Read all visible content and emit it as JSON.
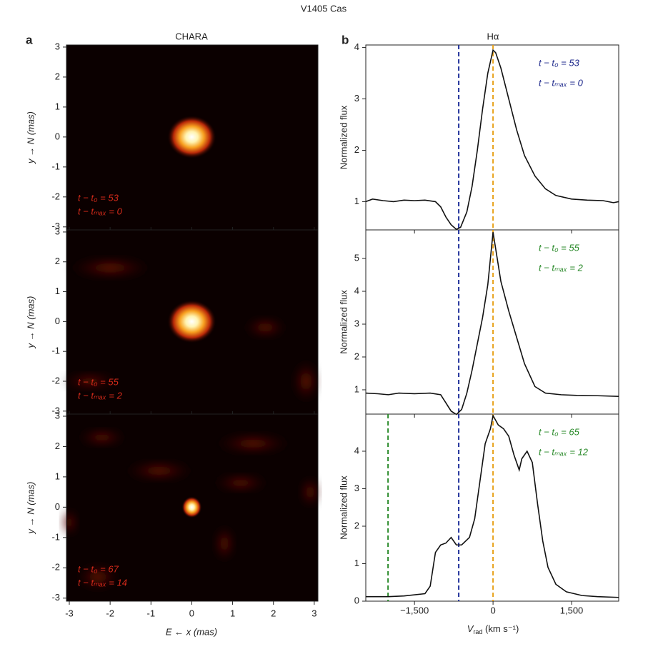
{
  "title": "V1405 Cas",
  "image_panels": {
    "label": "a",
    "title": "CHARA",
    "xlabel": "E ← x (mas)",
    "ylabel": "y → N (mas)",
    "xlim": [
      -3.07,
      3.09
    ],
    "ylim": [
      -3.1,
      3.07
    ],
    "xticks": [
      -3,
      -2,
      -1,
      0,
      1,
      2,
      3
    ],
    "yticks": [
      -3,
      -2,
      -1,
      0,
      1,
      2,
      3
    ],
    "panels": [
      {
        "annotations": [
          "t − t₀ = 53",
          "t − tₘₐₓ = 0"
        ]
      },
      {
        "annotations": [
          "t − t₀ = 55",
          "t − tₘₐₓ = 2"
        ]
      },
      {
        "annotations": [
          "t − t₀ = 67",
          "t − tₘₐₓ = 14"
        ]
      }
    ]
  },
  "spectra_panel": {
    "label": "b",
    "title": "Hα",
    "ylabel": "Normalized flux",
    "xlabel": {
      "main": "V",
      "sub": "rad",
      "unit": " (km s⁻¹)"
    }
  },
  "chart_data": [
    {
      "type": "line",
      "color": "#111",
      "xlim": [
        -2430,
        2400
      ],
      "ylim": [
        0.45,
        4.05
      ],
      "yticks": [
        1,
        2,
        3,
        4
      ],
      "xticks": [
        {
          "value": -1500,
          "label": "−1,500"
        },
        0,
        {
          "value": 1500,
          "label": "1,500"
        }
      ],
      "annotations": [
        "t − t₀ = 53",
        "t − tₘₐₓ = 0"
      ],
      "annotation_color": "#1f2a8c",
      "vlines": [
        {
          "x": -655,
          "color": "#1f2f9a"
        },
        {
          "x": 0,
          "color": "#e8a21a"
        }
      ],
      "x": [
        -2430,
        -2300,
        -2100,
        -1900,
        -1700,
        -1500,
        -1300,
        -1100,
        -1000,
        -900,
        -800,
        -700,
        -620,
        -500,
        -400,
        -300,
        -200,
        -100,
        0,
        50,
        150,
        300,
        450,
        600,
        800,
        1000,
        1200,
        1500,
        1800,
        2100,
        2300,
        2400
      ],
      "values": [
        1.0,
        1.05,
        1.02,
        1.0,
        1.03,
        1.02,
        1.03,
        1.0,
        0.9,
        0.7,
        0.55,
        0.46,
        0.5,
        0.8,
        1.3,
        2.0,
        2.8,
        3.5,
        3.95,
        3.9,
        3.6,
        3.0,
        2.4,
        1.9,
        1.5,
        1.25,
        1.12,
        1.05,
        1.03,
        1.02,
        0.98,
        1.0
      ]
    },
    {
      "type": "line",
      "color": "#111",
      "xlim": [
        -2430,
        2400
      ],
      "ylim": [
        0.26,
        5.87
      ],
      "yticks": [
        1,
        2,
        3,
        4,
        5
      ],
      "xticks": [
        {
          "value": -1500,
          "label": "−1,500"
        },
        0,
        {
          "value": 1500,
          "label": "1,500"
        }
      ],
      "annotations": [
        "t − t₀ = 55",
        "t − tₘₐₓ = 2"
      ],
      "annotation_color": "#2a8a2a",
      "vlines": [
        {
          "x": -655,
          "color": "#1f2f9a"
        },
        {
          "x": 0,
          "color": "#e8a21a"
        }
      ],
      "x": [
        -2430,
        -2200,
        -2000,
        -1800,
        -1500,
        -1200,
        -1000,
        -900,
        -800,
        -700,
        -600,
        -500,
        -400,
        -300,
        -200,
        -100,
        0,
        50,
        150,
        300,
        450,
        600,
        800,
        1000,
        1300,
        1600,
        2000,
        2400
      ],
      "values": [
        0.9,
        0.88,
        0.85,
        0.9,
        0.88,
        0.9,
        0.85,
        0.6,
        0.35,
        0.25,
        0.4,
        0.9,
        1.6,
        2.4,
        3.2,
        4.2,
        5.8,
        5.3,
        4.3,
        3.4,
        2.6,
        1.8,
        1.1,
        0.9,
        0.85,
        0.83,
        0.82,
        0.8
      ]
    },
    {
      "type": "line",
      "color": "#111",
      "xlim": [
        -2430,
        2400
      ],
      "ylim": [
        0,
        4.99
      ],
      "yticks": [
        0,
        1,
        2,
        3,
        4
      ],
      "xticks": [
        {
          "value": -1500,
          "label": "−1,500"
        },
        0,
        {
          "value": 1500,
          "label": "1,500"
        }
      ],
      "annotations": [
        "t − t₀ = 65",
        "t − tₘₐₓ = 12"
      ],
      "annotation_color": "#2a8a2a",
      "vlines": [
        {
          "x": -655,
          "color": "#1f2f9a"
        },
        {
          "x": 0,
          "color": "#e8a21a"
        },
        {
          "x": -2005,
          "color": "#2a8a2a"
        }
      ],
      "x": [
        -2430,
        -2000,
        -1700,
        -1300,
        -1200,
        -1100,
        -1000,
        -900,
        -800,
        -700,
        -600,
        -450,
        -350,
        -250,
        -150,
        -50,
        0,
        100,
        200,
        300,
        400,
        500,
        550,
        650,
        750,
        850,
        950,
        1050,
        1200,
        1400,
        1700,
        2000,
        2400
      ],
      "values": [
        0.12,
        0.12,
        0.14,
        0.2,
        0.4,
        1.3,
        1.5,
        1.55,
        1.7,
        1.5,
        1.5,
        1.7,
        2.2,
        3.2,
        4.2,
        4.6,
        4.95,
        4.7,
        4.6,
        4.4,
        3.9,
        3.5,
        3.8,
        4.0,
        3.7,
        2.6,
        1.6,
        0.9,
        0.45,
        0.25,
        0.15,
        0.12,
        0.1
      ]
    }
  ]
}
